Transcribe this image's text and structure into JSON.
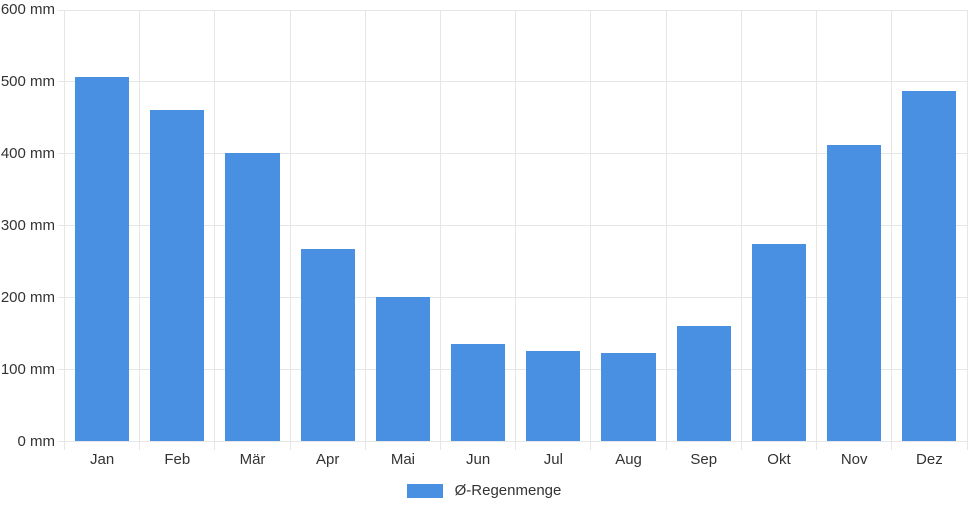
{
  "chart_data": {
    "type": "bar",
    "title": "",
    "xlabel": "",
    "ylabel": "",
    "unit": "mm",
    "categories": [
      "Jan",
      "Feb",
      "Mär",
      "Apr",
      "Mai",
      "Jun",
      "Jul",
      "Aug",
      "Sep",
      "Okt",
      "Nov",
      "Dez"
    ],
    "series": [
      {
        "name": "Ø-Regenmenge",
        "color": "#4a90e2",
        "values": [
          507,
          461,
          401,
          268,
          201,
          135,
          126,
          123,
          160,
          275,
          412,
          487
        ]
      }
    ],
    "ylim": [
      0,
      600
    ],
    "y_ticks": {
      "values": [
        0,
        100,
        200,
        300,
        400,
        500,
        600
      ],
      "labels": [
        "0 mm",
        "100 mm",
        "200 mm",
        "300 mm",
        "400 mm",
        "500 mm",
        "600 mm"
      ]
    },
    "grid": true,
    "legend_position": "bottom"
  },
  "legend": {
    "label": "Ø-Regenmenge",
    "swatch_color": "#4a90e2"
  },
  "colors": {
    "bar": "#4a90e2",
    "gridline": "#e6e6e6",
    "text": "#333333",
    "background": "#ffffff"
  }
}
